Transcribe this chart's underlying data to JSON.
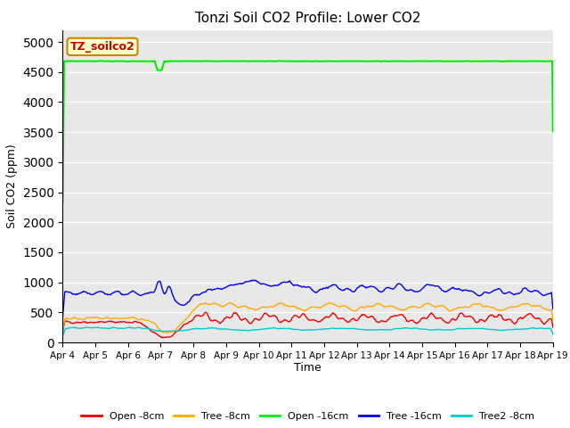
{
  "title": "Tonzi Soil CO2 Profile: Lower CO2",
  "ylabel": "Soil CO2 (ppm)",
  "xlabel": "Time",
  "watermark": "TZ_soilco2",
  "ylim": [
    0,
    5200
  ],
  "yticks": [
    0,
    500,
    1000,
    1500,
    2000,
    2500,
    3000,
    3500,
    4000,
    4500,
    5000
  ],
  "bg_color": "#e8e8e8",
  "series": {
    "open_8cm": {
      "color": "#ee0000",
      "label": "Open -8cm",
      "lw": 1.0
    },
    "tree_8cm": {
      "color": "#ffaa00",
      "label": "Tree -8cm",
      "lw": 1.0
    },
    "open_16cm": {
      "color": "#00ee00",
      "label": "Open -16cm",
      "lw": 1.5
    },
    "tree_16cm": {
      "color": "#0000ee",
      "label": "Tree -16cm",
      "lw": 1.0
    },
    "tree2_8cm": {
      "color": "#00cccc",
      "label": "Tree2 -8cm",
      "lw": 1.0
    }
  },
  "x_tick_labels": [
    "Apr 4",
    "Apr 5",
    "Apr 6",
    "Apr 7",
    "Apr 8",
    "Apr 9",
    "Apr 10",
    "Apr 11",
    "Apr 12",
    "Apr 13",
    "Apr 14",
    "Apr 15",
    "Apr 16",
    "Apr 17",
    "Apr 18",
    "Apr 19"
  ],
  "n_points": 720
}
